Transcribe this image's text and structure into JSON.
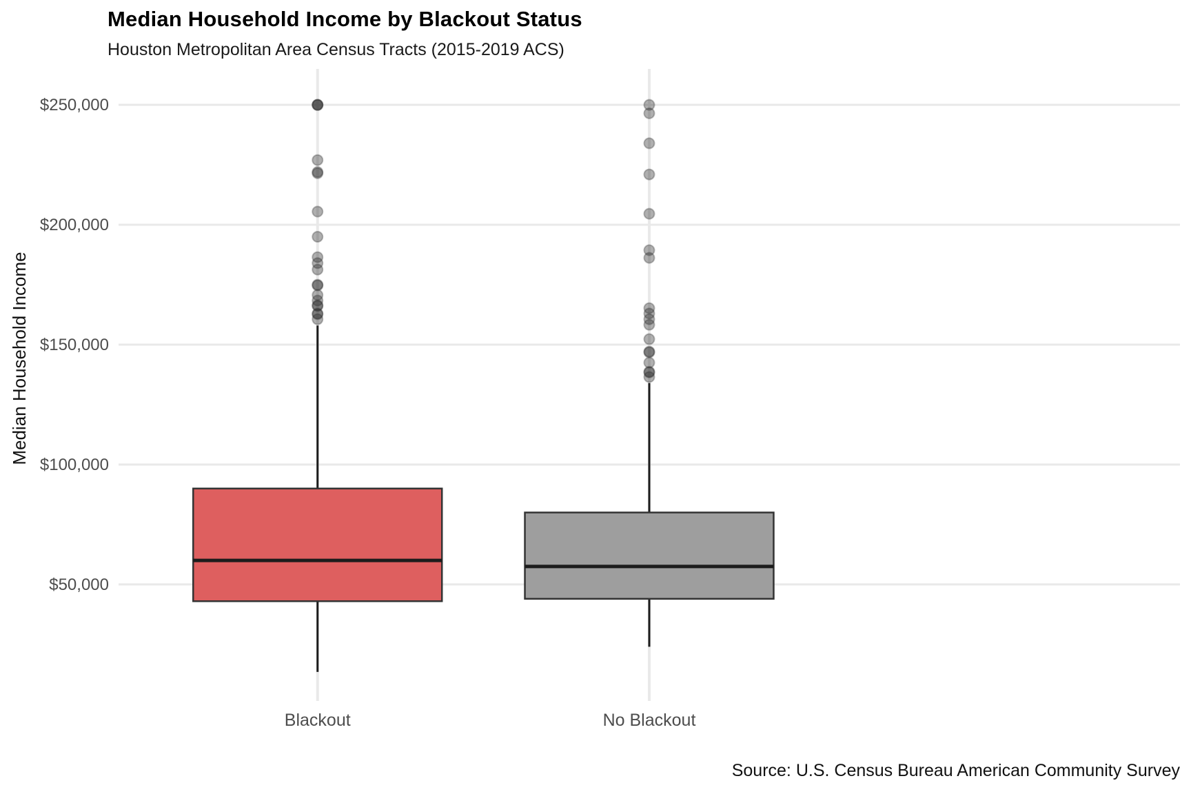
{
  "header": {
    "title": "Median Household Income by Blackout Status",
    "subtitle": "Houston Metropolitan Area Census Tracts (2015-2019 ACS)"
  },
  "caption": "Source: U.S. Census Bureau American Community Survey",
  "colors": {
    "background": "#ffffff",
    "gridline": "#e9e9e9",
    "axis_text": "#4d4d4d",
    "box_border": "#333333",
    "median_line": "#1c1c1c",
    "whisker": "#1c1c1c",
    "outlier": "#2e2e2e",
    "blackout_fill": "#de5f5f",
    "no_blackout_fill": "#9e9e9e"
  },
  "chart_data": {
    "type": "boxplot",
    "title": "Median Household Income by Blackout Status",
    "subtitle": "Houston Metropolitan Area Census Tracts (2015-2019 ACS)",
    "caption": "Source: U.S. Census Bureau American Community Survey",
    "xlabel": "",
    "ylabel": "Median Household Income",
    "ylim": [
      1400,
      265000
    ],
    "grid": "major-only",
    "legend": "none",
    "yticks": [
      50000,
      100000,
      150000,
      200000,
      250000
    ],
    "ytick_labels": [
      "$50,000",
      "$100,000",
      "$150,000",
      "$200,000",
      "$250,000"
    ],
    "categories": [
      "Blackout",
      "No Blackout"
    ],
    "series": [
      {
        "name": "Blackout",
        "fill": "#de5f5f",
        "whisker_low": 13500,
        "q1": 43000,
        "median": 60000,
        "q3": 90000,
        "whisker_high": 158000,
        "outliers": [
          250000,
          250000,
          250000,
          227000,
          222000,
          221500,
          205500,
          195000,
          186500,
          184000,
          181300,
          175000,
          174700,
          170700,
          168400,
          166400,
          166100,
          163000,
          162700,
          160600
        ]
      },
      {
        "name": "No Blackout",
        "fill": "#9e9e9e",
        "whisker_low": 24000,
        "q1": 44000,
        "median": 57500,
        "q3": 80000,
        "whisker_high": 134000,
        "outliers": [
          250000,
          246500,
          234000,
          221000,
          204600,
          189400,
          186200,
          165200,
          163000,
          160600,
          158300,
          152300,
          147100,
          146800,
          142500,
          138700,
          138400,
          136500
        ]
      }
    ]
  }
}
